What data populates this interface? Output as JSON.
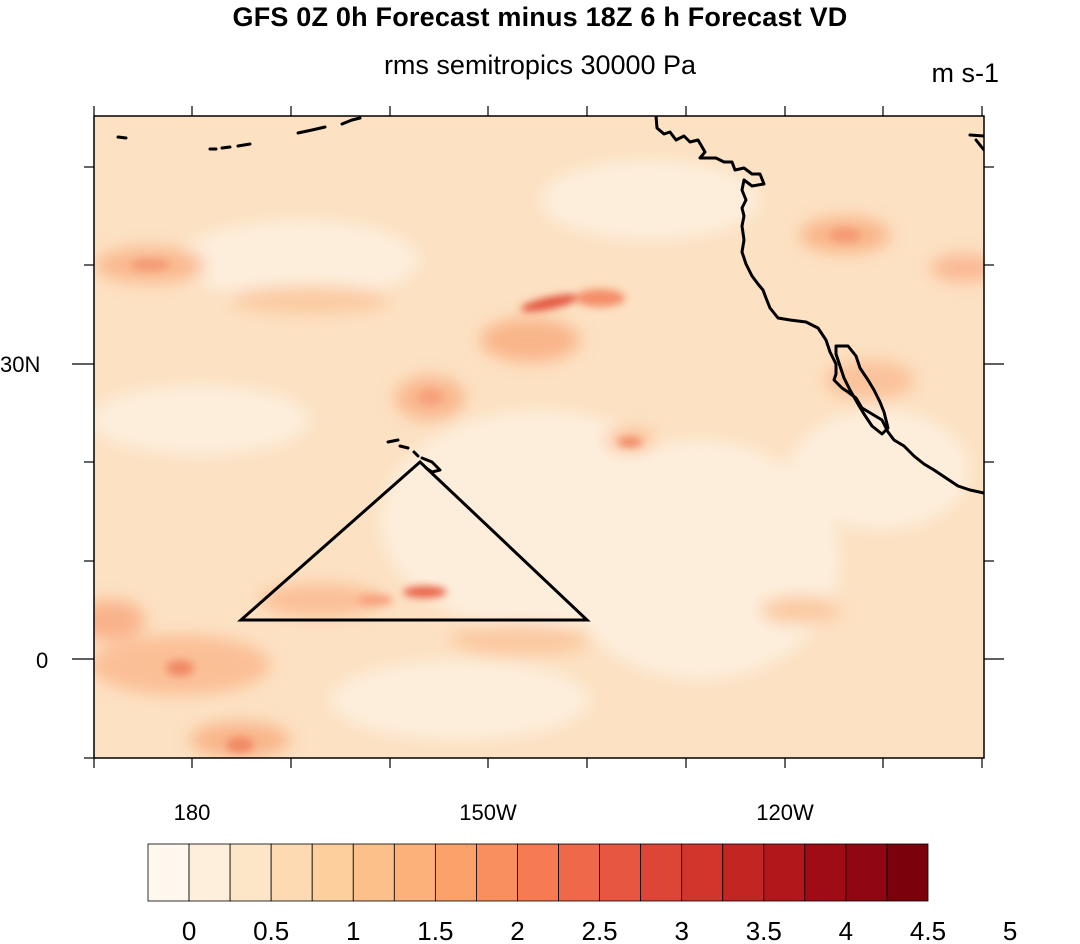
{
  "title": "GFS 0Z 0h Forecast minus 18Z 6 h Forecast VD",
  "subtitle": "rms semitropics 30000 Pa",
  "units": "m s-1",
  "map": {
    "lat_labels": [
      "30N",
      "0"
    ],
    "lon_labels": [
      "180",
      "150W",
      "120W"
    ]
  },
  "colorbar": {
    "labels": [
      "0",
      "0.5",
      "1",
      "1.5",
      "2",
      "2.5",
      "3",
      "3.5",
      "4",
      "4.5",
      "5"
    ],
    "colors": [
      "#fef8ee",
      "#fdefdc",
      "#fde5c7",
      "#fddab1",
      "#fccf9c",
      "#fcc18a",
      "#fcb17a",
      "#fba16a",
      "#f98f5e",
      "#f67b52",
      "#ef6849",
      "#e75640",
      "#dd4536",
      "#d1352c",
      "#c32622",
      "#b2171b",
      "#a00c16",
      "#8e0712",
      "#7b020d"
    ]
  }
}
